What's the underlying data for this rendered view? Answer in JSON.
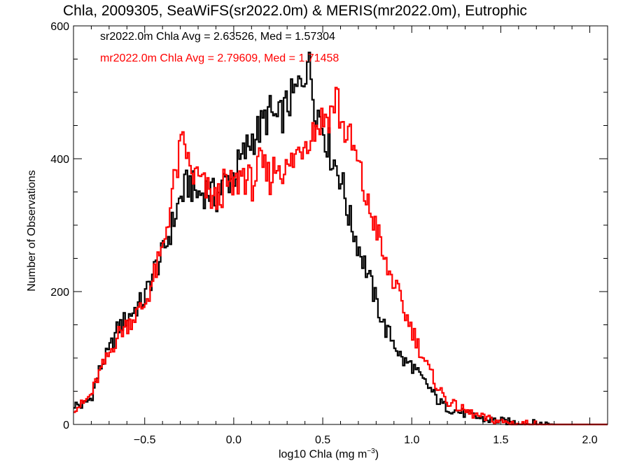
{
  "chart_data": {
    "type": "histogram",
    "title": "Chla, 2009305, SeaWiFS(sr2022.0m) & MERIS(mr2022.0m), Eutrophic",
    "xlabel_text": "log10 Chla (mg m",
    "xlabel_sup": "−3",
    "xlabel_close": ")",
    "ylabel": "Number of Observations",
    "xlim": [
      -0.9,
      2.1
    ],
    "ylim": [
      0,
      600
    ],
    "xticks": [
      -0.5,
      0.0,
      0.5,
      1.0,
      1.5,
      2.0
    ],
    "xtick_labels": [
      "−0.5",
      "0.0",
      "0.5",
      "1.0",
      "1.5",
      "2.0"
    ],
    "yticks": [
      0,
      200,
      400,
      600
    ],
    "ytick_labels": [
      "0",
      "200",
      "400",
      "600"
    ],
    "bin_width": 0.01,
    "annotations": [
      {
        "text": "sr2022.0m Chla Avg = 2.63526, Med = 1.57304",
        "color": "#000000"
      },
      {
        "text": "mr2022.0m Chla Avg = 2.79609, Med = 1.71458",
        "color": "#ff0000"
      }
    ],
    "series": [
      {
        "name": "sr2022.0m",
        "color": "#000000",
        "control_points": [
          [
            -0.9,
            30
          ],
          [
            -0.85,
            28
          ],
          [
            -0.8,
            40
          ],
          [
            -0.75,
            85
          ],
          [
            -0.7,
            110
          ],
          [
            -0.65,
            145
          ],
          [
            -0.6,
            160
          ],
          [
            -0.55,
            175
          ],
          [
            -0.5,
            190
          ],
          [
            -0.45,
            230
          ],
          [
            -0.4,
            255
          ],
          [
            -0.35,
            295
          ],
          [
            -0.3,
            340
          ],
          [
            -0.25,
            365
          ],
          [
            -0.2,
            345
          ],
          [
            -0.15,
            355
          ],
          [
            -0.1,
            340
          ],
          [
            -0.05,
            365
          ],
          [
            0.0,
            375
          ],
          [
            0.05,
            400
          ],
          [
            0.1,
            430
          ],
          [
            0.15,
            445
          ],
          [
            0.2,
            470
          ],
          [
            0.25,
            455
          ],
          [
            0.3,
            480
          ],
          [
            0.35,
            500
          ],
          [
            0.4,
            530
          ],
          [
            0.42,
            560
          ],
          [
            0.45,
            490
          ],
          [
            0.5,
            450
          ],
          [
            0.55,
            405
          ],
          [
            0.6,
            375
          ],
          [
            0.65,
            310
          ],
          [
            0.7,
            270
          ],
          [
            0.75,
            230
          ],
          [
            0.8,
            185
          ],
          [
            0.85,
            145
          ],
          [
            0.9,
            125
          ],
          [
            0.95,
            95
          ],
          [
            1.0,
            90
          ],
          [
            1.05,
            70
          ],
          [
            1.1,
            55
          ],
          [
            1.15,
            35
          ],
          [
            1.2,
            25
          ],
          [
            1.3,
            16
          ],
          [
            1.4,
            8
          ],
          [
            1.5,
            5
          ],
          [
            1.6,
            2
          ],
          [
            1.7,
            1
          ],
          [
            1.8,
            0
          ],
          [
            2.1,
            0
          ]
        ]
      },
      {
        "name": "mr2022.0m",
        "color": "#ff0000",
        "control_points": [
          [
            -0.9,
            25
          ],
          [
            -0.85,
            30
          ],
          [
            -0.8,
            45
          ],
          [
            -0.75,
            80
          ],
          [
            -0.7,
            105
          ],
          [
            -0.65,
            135
          ],
          [
            -0.6,
            150
          ],
          [
            -0.55,
            165
          ],
          [
            -0.5,
            180
          ],
          [
            -0.45,
            220
          ],
          [
            -0.4,
            260
          ],
          [
            -0.35,
            340
          ],
          [
            -0.3,
            410
          ],
          [
            -0.27,
            425
          ],
          [
            -0.25,
            380
          ],
          [
            -0.2,
            370
          ],
          [
            -0.15,
            350
          ],
          [
            -0.1,
            335
          ],
          [
            -0.05,
            360
          ],
          [
            0.0,
            355
          ],
          [
            0.05,
            380
          ],
          [
            0.1,
            360
          ],
          [
            0.15,
            390
          ],
          [
            0.2,
            370
          ],
          [
            0.25,
            395
          ],
          [
            0.3,
            380
          ],
          [
            0.35,
            405
          ],
          [
            0.4,
            430
          ],
          [
            0.45,
            445
          ],
          [
            0.5,
            460
          ],
          [
            0.55,
            470
          ],
          [
            0.58,
            500
          ],
          [
            0.6,
            455
          ],
          [
            0.65,
            430
          ],
          [
            0.7,
            390
          ],
          [
            0.75,
            330
          ],
          [
            0.8,
            300
          ],
          [
            0.85,
            240
          ],
          [
            0.9,
            215
          ],
          [
            0.95,
            175
          ],
          [
            1.0,
            145
          ],
          [
            1.05,
            110
          ],
          [
            1.1,
            80
          ],
          [
            1.15,
            55
          ],
          [
            1.2,
            35
          ],
          [
            1.3,
            20
          ],
          [
            1.4,
            10
          ],
          [
            1.5,
            4
          ],
          [
            1.6,
            1
          ],
          [
            1.7,
            0
          ],
          [
            2.1,
            0
          ]
        ]
      }
    ]
  }
}
